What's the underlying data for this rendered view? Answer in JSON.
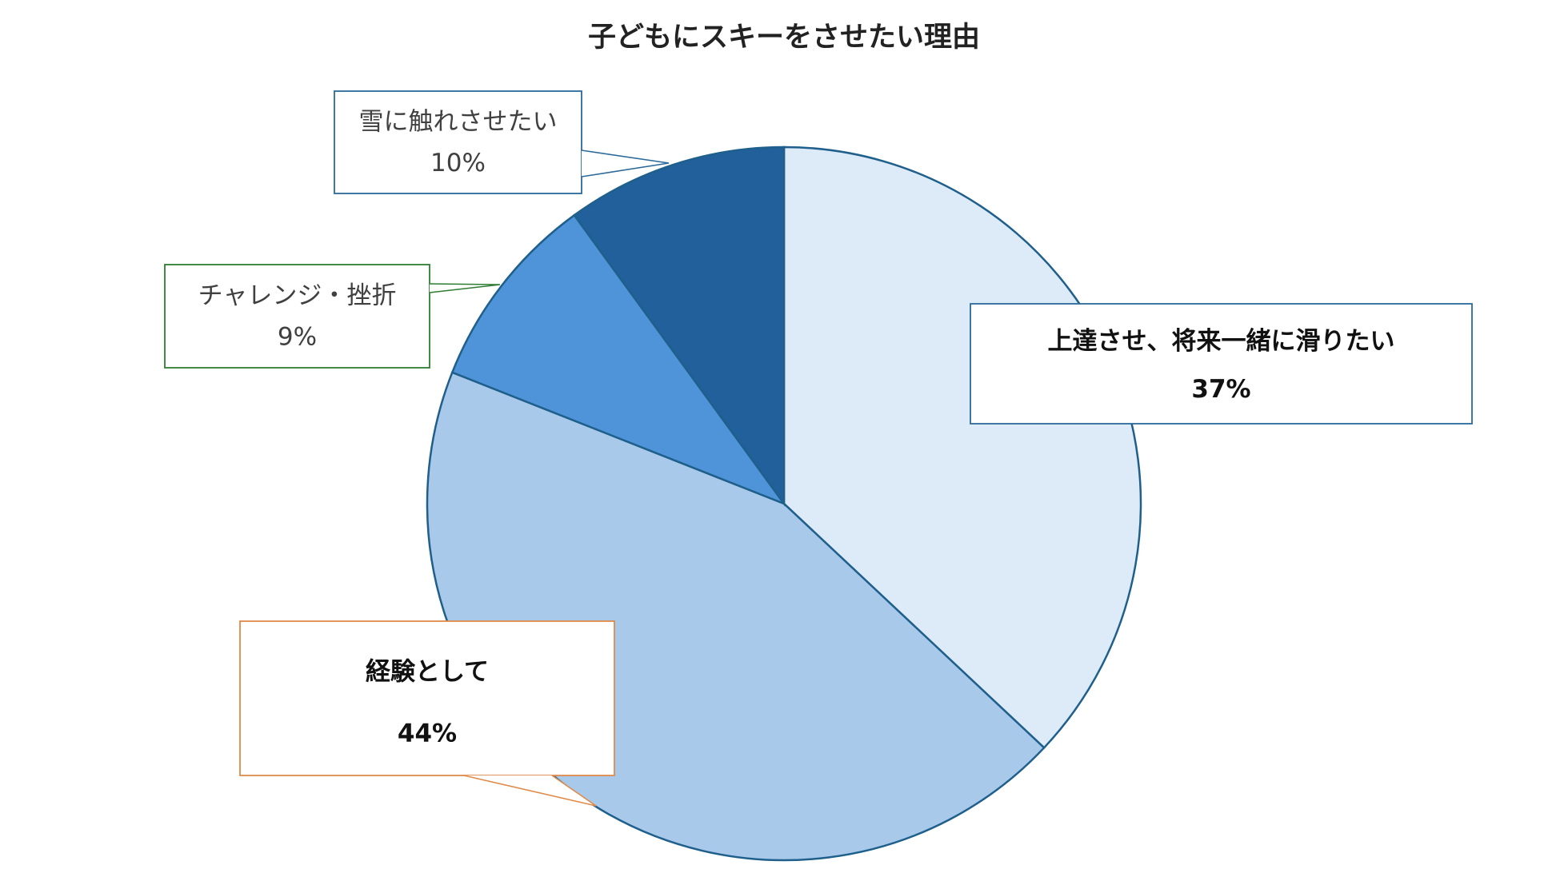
{
  "chart_data": {
    "type": "pie",
    "title": "子どもにスキーをさせたい理由",
    "slices": [
      {
        "label": "上達させ、将来一緒に滑りたい",
        "value": 37,
        "value_label": "37%",
        "color": "#ddeaf7",
        "callout_border": "#2b6a9a",
        "bold": true
      },
      {
        "label": "経験として",
        "value": 44,
        "value_label": "44%",
        "color": "#a8c9ea",
        "callout_border": "#e08a4a",
        "bold": true
      },
      {
        "label": "チャレンジ・挫折",
        "value": 9,
        "value_label": "9%",
        "color": "#4f94d8",
        "callout_border": "#2e7d32",
        "bold": false
      },
      {
        "label": "雪に触れさせたい",
        "value": 10,
        "value_label": "10%",
        "color": "#21609b",
        "callout_border": "#2b6a9a",
        "bold": false
      }
    ],
    "start": "12 o'clock",
    "direction": "clockwise",
    "slice_border_color": "#1f5f8b",
    "legend": "none"
  }
}
